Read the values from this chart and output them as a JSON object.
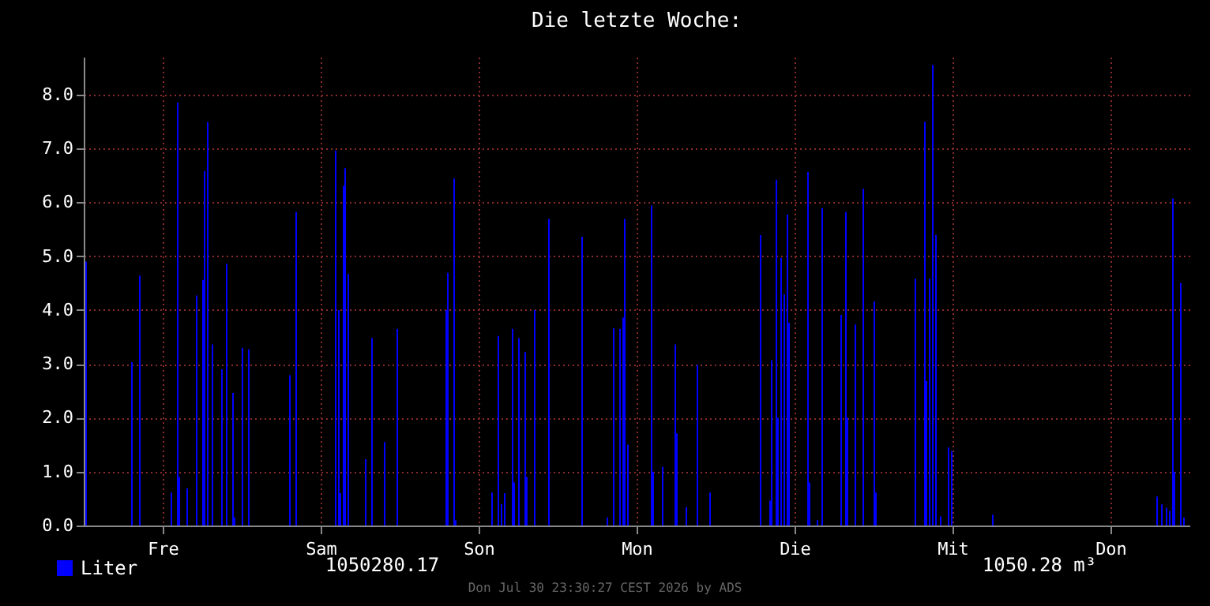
{
  "chart_data": {
    "type": "bar",
    "title": "Die letzte Woche:",
    "categories": [
      null,
      null,
      null,
      null,
      null,
      null,
      null,
      null,
      null,
      null,
      null,
      null,
      null,
      null,
      null,
      null,
      null,
      null,
      null,
      null,
      null,
      null,
      null,
      null,
      null,
      null,
      null,
      null,
      null,
      null,
      null,
      null,
      null,
      null,
      null,
      null,
      null,
      null,
      null,
      null,
      null,
      null,
      null,
      null,
      null,
      null,
      null,
      null,
      null,
      null,
      "Fre",
      null,
      null,
      null,
      null,
      null,
      null,
      null,
      null,
      null,
      null,
      null,
      null,
      null,
      null,
      null,
      null,
      null,
      null,
      null,
      null,
      null,
      null,
      null,
      null,
      null,
      null,
      null,
      null,
      null,
      null,
      null,
      null,
      null,
      null,
      null,
      null,
      null,
      null,
      null,
      null,
      null,
      null,
      null,
      null,
      null,
      null,
      null,
      null,
      null,
      null,
      null,
      null,
      null,
      null,
      null,
      null,
      null,
      null,
      null,
      null,
      null,
      null,
      null,
      null,
      null,
      null,
      null,
      null,
      null,
      null,
      null,
      null,
      null,
      null,
      null,
      null,
      null,
      null,
      null,
      null,
      null,
      null,
      null,
      null,
      null,
      null,
      null,
      null,
      null,
      null,
      null,
      null,
      null,
      null,
      null,
      null,
      null,
      null,
      null,
      "Sam",
      null,
      null,
      null,
      null,
      null,
      null,
      null,
      null,
      null,
      null,
      null,
      null,
      null,
      null,
      null,
      null,
      null,
      null,
      null,
      null,
      null,
      null,
      null,
      null,
      null,
      null,
      null,
      null,
      null,
      null,
      null,
      null,
      null,
      null,
      null,
      null,
      null,
      null,
      null,
      null,
      null,
      null,
      null,
      null,
      null,
      null,
      null,
      null,
      null,
      null,
      null,
      null,
      null,
      null,
      null,
      null,
      null,
      null,
      null,
      null,
      null,
      null,
      null,
      null,
      null,
      null,
      null,
      null,
      null,
      null,
      null,
      null,
      null,
      null,
      null,
      null,
      null,
      null,
      null,
      null,
      null,
      null,
      null,
      null,
      null,
      null,
      null,
      null,
      null,
      null,
      null,
      null,
      null,
      null,
      null,
      null,
      null,
      null,
      null,
      "Son",
      null,
      null,
      null,
      null,
      null,
      null,
      null,
      null,
      null,
      null,
      null,
      null,
      null,
      null,
      null,
      null,
      null,
      null,
      null,
      null,
      null,
      null,
      null,
      null,
      null,
      null,
      null,
      null,
      null,
      null,
      null,
      null,
      null,
      null,
      null,
      null,
      null,
      null,
      null,
      null,
      null,
      null,
      null,
      null,
      null,
      null,
      null,
      null,
      null,
      null,
      null,
      null,
      null,
      null,
      null,
      null,
      null,
      null,
      null,
      null,
      null,
      null,
      null,
      null,
      null,
      null,
      null,
      null,
      null,
      null,
      null,
      null,
      null,
      null,
      null,
      null,
      null,
      null,
      null,
      null,
      null,
      null,
      null,
      null,
      null,
      null,
      null,
      null,
      null,
      null,
      null,
      null,
      null,
      null,
      null,
      null,
      null,
      null,
      null,
      "Mon",
      null,
      null,
      null,
      null,
      null,
      null,
      null,
      null,
      null,
      null,
      null,
      null,
      null,
      null,
      null,
      null,
      null,
      null,
      null,
      null,
      null,
      null,
      null,
      null,
      null,
      null,
      null,
      null,
      null,
      null,
      null,
      null,
      null,
      null,
      null,
      null,
      null,
      null,
      null,
      null,
      null,
      null,
      null,
      null,
      null,
      null,
      null,
      null,
      null,
      null,
      null,
      null,
      null,
      null,
      null,
      null,
      null,
      null,
      null,
      null,
      null,
      null,
      null,
      null,
      null,
      null,
      null,
      null,
      null,
      null,
      null,
      null,
      null,
      null,
      null,
      null,
      null,
      null,
      null,
      null,
      null,
      null,
      null,
      null,
      null,
      null,
      null,
      null,
      null,
      null,
      null,
      null,
      null,
      null,
      null,
      null,
      null,
      null,
      null,
      "Die",
      null,
      null,
      null,
      null,
      null,
      null,
      null,
      null,
      null,
      null,
      null,
      null,
      null,
      null,
      null,
      null,
      null,
      null,
      null,
      null,
      null,
      null,
      null,
      null,
      null,
      null,
      null,
      null,
      null,
      null,
      null,
      null,
      null,
      null,
      null,
      null,
      null,
      null,
      null,
      null,
      null,
      null,
      null,
      null,
      null,
      null,
      null,
      null,
      null,
      null,
      null,
      null,
      null,
      null,
      null,
      null,
      null,
      null,
      null,
      null,
      null,
      null,
      null,
      null,
      null,
      null,
      null,
      null,
      null,
      null,
      null,
      null,
      null,
      null,
      null,
      null,
      null,
      null,
      null,
      null,
      null,
      null,
      null,
      null,
      null,
      null,
      null,
      null,
      null,
      null,
      null,
      null,
      null,
      null,
      null,
      null,
      null,
      null,
      null,
      "Mit",
      null,
      null,
      null,
      null,
      null,
      null,
      null,
      null,
      null,
      null,
      null,
      null,
      null,
      null,
      null,
      null,
      null,
      null,
      null,
      null,
      null,
      null,
      null,
      null,
      null,
      null,
      null,
      null,
      null,
      null,
      null,
      null,
      null,
      null,
      null,
      null,
      null,
      null,
      null,
      null,
      null,
      null,
      null,
      null,
      null,
      null,
      null,
      null,
      null,
      null,
      null,
      null,
      null,
      null,
      null,
      null,
      null,
      null,
      null,
      null,
      null,
      null,
      null,
      null,
      null,
      null,
      null,
      null,
      null,
      null,
      null,
      null,
      null,
      null,
      null,
      null,
      null,
      null,
      null,
      null,
      null,
      null,
      null,
      null,
      null,
      null,
      null,
      null,
      null,
      null,
      null,
      null,
      null,
      null,
      null,
      null,
      null,
      null,
      null,
      "Don",
      null,
      null,
      null,
      null,
      null,
      null,
      null,
      null,
      null,
      null,
      null,
      null,
      null,
      null,
      null,
      null,
      null,
      null,
      null,
      null,
      null,
      null,
      null,
      null,
      null,
      null,
      null,
      null,
      null,
      null,
      null,
      null,
      null,
      null,
      null,
      null,
      null,
      null,
      null,
      null,
      null,
      null,
      null,
      null,
      null,
      null,
      null,
      null,
      null
    ],
    "series": [
      {
        "name": "Liter",
        "color": "#0000ff",
        "values": [
          null,
          4.9,
          null,
          null,
          null,
          null,
          null,
          null,
          null,
          null,
          null,
          null,
          null,
          null,
          null,
          null,
          null,
          null,
          null,
          null,
          null,
          null,
          null,
          null,
          null,
          null,
          null,
          null,
          null,
          null,
          3.03,
          null,
          null,
          null,
          null,
          4.64,
          null,
          null,
          null,
          null,
          null,
          null,
          null,
          null,
          null,
          null,
          null,
          null,
          null,
          null,
          null,
          null,
          null,
          null,
          null,
          0.61,
          null,
          null,
          null,
          7.85,
          0.9,
          null,
          null,
          null,
          null,
          0.69,
          null,
          null,
          null,
          null,
          null,
          4.27,
          null,
          null,
          null,
          4.56,
          6.58,
          null,
          7.49,
          null,
          null,
          3.36,
          null,
          null,
          null,
          null,
          null,
          2.9,
          null,
          null,
          4.86,
          null,
          null,
          null,
          2.46,
          0.15,
          null,
          null,
          null,
          null,
          3.3,
          null,
          null,
          null,
          3.27,
          null,
          null,
          null,
          null,
          null,
          null,
          null,
          null,
          null,
          null,
          null,
          null,
          null,
          null,
          null,
          null,
          null,
          null,
          null,
          null,
          null,
          null,
          null,
          null,
          null,
          2.79,
          null,
          null,
          null,
          5.82,
          null,
          null,
          null,
          null,
          null,
          null,
          null,
          null,
          null,
          null,
          null,
          null,
          null,
          null,
          null,
          null,
          null,
          null,
          null,
          null,
          null,
          null,
          null,
          null,
          6.96,
          null,
          4.0,
          0.6,
          null,
          6.3,
          6.63,
          null,
          4.67,
          null,
          null,
          null,
          null,
          null,
          null,
          null,
          null,
          null,
          null,
          1.23,
          null,
          null,
          null,
          3.48,
          null,
          null,
          null,
          null,
          null,
          null,
          null,
          1.55,
          null,
          null,
          null,
          null,
          null,
          null,
          null,
          3.65,
          null,
          null,
          null,
          null,
          null,
          null,
          null,
          null,
          null,
          null,
          null,
          null,
          null,
          null,
          null,
          null,
          null,
          null,
          null,
          null,
          null,
          null,
          null,
          null,
          null,
          null,
          null,
          null,
          null,
          null,
          4.0,
          4.69,
          null,
          null,
          null,
          6.44,
          0.1,
          null,
          null,
          null,
          null,
          null,
          null,
          null,
          null,
          null,
          null,
          null,
          null,
          null,
          null,
          null,
          null,
          null,
          null,
          null,
          null,
          null,
          null,
          0.61,
          null,
          null,
          null,
          3.52,
          null,
          0.4,
          null,
          0.6,
          null,
          null,
          null,
          null,
          3.65,
          0.8,
          null,
          null,
          3.48,
          null,
          null,
          null,
          3.22,
          0.9,
          null,
          null,
          null,
          null,
          4.0,
          null,
          null,
          null,
          null,
          null,
          null,
          null,
          null,
          5.69,
          null,
          null,
          null,
          null,
          null,
          null,
          null,
          null,
          null,
          null,
          null,
          null,
          null,
          null,
          null,
          null,
          null,
          null,
          null,
          null,
          5.36,
          null,
          null,
          null,
          null,
          null,
          null,
          null,
          null,
          null,
          null,
          null,
          null,
          null,
          null,
          null,
          0.15,
          null,
          null,
          null,
          3.66,
          null,
          null,
          null,
          3.65,
          null,
          3.86,
          5.69,
          null,
          1.5,
          null,
          null,
          null,
          null,
          null,
          null,
          null,
          null,
          null,
          null,
          null,
          null,
          null,
          null,
          5.94,
          1.0,
          null,
          null,
          null,
          null,
          null,
          1.09,
          null,
          null,
          null,
          null,
          null,
          null,
          null,
          3.36,
          1.71,
          null,
          null,
          null,
          null,
          null,
          0.34,
          null,
          null,
          null,
          null,
          null,
          null,
          2.98,
          null,
          null,
          null,
          null,
          null,
          null,
          null,
          0.61,
          null,
          null,
          null,
          null,
          null,
          null,
          null,
          null,
          null,
          null,
          null,
          null,
          null,
          null,
          null,
          null,
          null,
          null,
          null,
          null,
          null,
          null,
          null,
          null,
          null,
          null,
          null,
          null,
          null,
          null,
          null,
          5.39,
          null,
          null,
          null,
          null,
          null,
          0.46,
          3.07,
          null,
          null,
          6.42,
          2.0,
          null,
          4.97,
          null,
          4.29,
          null,
          5.77,
          3.76,
          null,
          null,
          null,
          null,
          null,
          null,
          null,
          null,
          null,
          null,
          null,
          6.56,
          0.8,
          null,
          null,
          null,
          null,
          0.1,
          null,
          null,
          5.89,
          null,
          null,
          null,
          null,
          null,
          null,
          null,
          null,
          null,
          null,
          null,
          3.91,
          null,
          null,
          5.82,
          2.0,
          null,
          null,
          null,
          null,
          3.73,
          null,
          null,
          null,
          null,
          6.25,
          null,
          null,
          null,
          null,
          null,
          null,
          4.16,
          0.61,
          null,
          null,
          null,
          null,
          null,
          null,
          null,
          null,
          null,
          null,
          null,
          null,
          null,
          null,
          null,
          null,
          null,
          null,
          null,
          null,
          null,
          null,
          null,
          null,
          4.58,
          null,
          null,
          null,
          null,
          null,
          7.49,
          2.68,
          null,
          4.58,
          null,
          8.55,
          null,
          5.39,
          null,
          null,
          0.17,
          null,
          null,
          null,
          null,
          1.45,
          null,
          1.38,
          null,
          null,
          null,
          null,
          null,
          null,
          null,
          null,
          null,
          null,
          null,
          null,
          null,
          null,
          null,
          null,
          null,
          null,
          null,
          null,
          null,
          null,
          null,
          null,
          null,
          0.2,
          null,
          null,
          null,
          null,
          null,
          null,
          null,
          null,
          null,
          null,
          null,
          null,
          null,
          null,
          null,
          null,
          null,
          null,
          null,
          null,
          null,
          null,
          null,
          null,
          null,
          null,
          null,
          null,
          null,
          null,
          null,
          null,
          null,
          null,
          null,
          null,
          null,
          null,
          null,
          null,
          null,
          null,
          null,
          null,
          null,
          null,
          null,
          null,
          null,
          null,
          null,
          null,
          null,
          null,
          null,
          null,
          null,
          null,
          null,
          null,
          null,
          null,
          null,
          null,
          null,
          null,
          null,
          null,
          null,
          null,
          null,
          null,
          null,
          null,
          null,
          null,
          null,
          null,
          null,
          null,
          null,
          null,
          null,
          null,
          null,
          null,
          null,
          null,
          null,
          null,
          null,
          null,
          null,
          null,
          null,
          null,
          null,
          null,
          null,
          null,
          null,
          null,
          null,
          0.54,
          null,
          null,
          0.39,
          null,
          null,
          0.33,
          null,
          0.27,
          null,
          6.07,
          1.0,
          null,
          null,
          null,
          4.5,
          null,
          0.15,
          null,
          null,
          null
        ]
      }
    ],
    "ylim": [
      0,
      8.7
    ],
    "yticks": [
      {
        "value": 0,
        "label": "0.0"
      },
      {
        "value": 1,
        "label": "1.0"
      },
      {
        "value": 2,
        "label": "2.0"
      },
      {
        "value": 3,
        "label": "3.0"
      },
      {
        "value": 4,
        "label": "4.0"
      },
      {
        "value": 5,
        "label": "5.0"
      },
      {
        "value": 6,
        "label": "6.0"
      },
      {
        "value": 7,
        "label": "7.0"
      },
      {
        "value": 8,
        "label": "8.0"
      }
    ],
    "grid": true,
    "legend": "bottom left",
    "annotations": [
      "1050280.17",
      "1050.28 m³",
      "Don Jul 30 23:30:27 CEST 2026 by ADS"
    ]
  }
}
